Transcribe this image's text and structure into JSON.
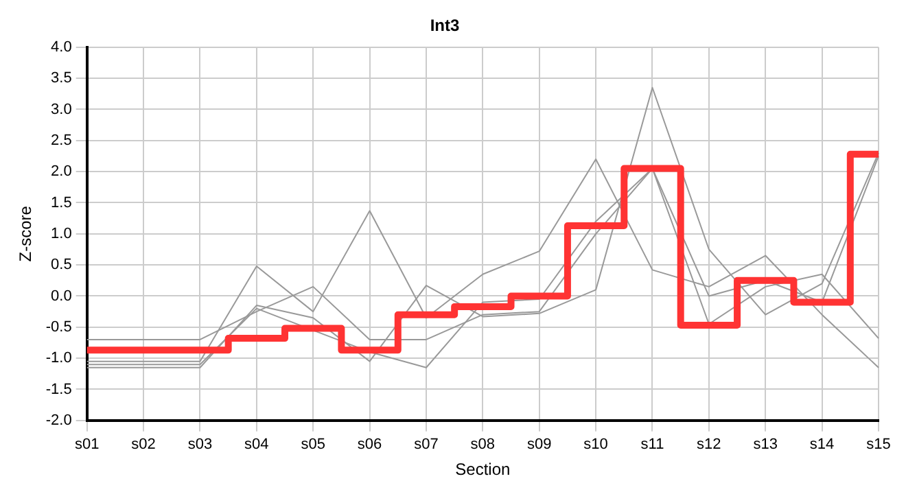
{
  "chart_data": {
    "type": "line",
    "title": "Int3",
    "xlabel": "Section",
    "ylabel": "Z-score",
    "categories": [
      "s01",
      "s02",
      "s03",
      "s04",
      "s05",
      "s06",
      "s07",
      "s08",
      "s09",
      "s10",
      "s11",
      "s12",
      "s13",
      "s14",
      "s15"
    ],
    "ylim": [
      -2,
      4
    ],
    "yticks": [
      {
        "value": -2,
        "label": "-2.0"
      },
      {
        "value": -1.5,
        "label": "-1.5"
      },
      {
        "value": -1,
        "label": "-1.0"
      },
      {
        "value": -0.5,
        "label": "-0.5"
      },
      {
        "value": 0,
        "label": "0.0"
      },
      {
        "value": 0.5,
        "label": "0.5"
      },
      {
        "value": 1,
        "label": "1.0"
      },
      {
        "value": 1.5,
        "label": "1.5"
      },
      {
        "value": 2,
        "label": "2.0"
      },
      {
        "value": 2.5,
        "label": "2.5"
      },
      {
        "value": 3,
        "label": "3.0"
      },
      {
        "value": 3.5,
        "label": "3.5"
      },
      {
        "value": 4,
        "label": "4.0"
      }
    ],
    "grid": true,
    "legend": false,
    "marker": "none",
    "series": [
      {
        "type": "line",
        "color": "#999999",
        "values": [
          -0.7,
          -0.7,
          -0.7,
          -0.25,
          0.15,
          -0.7,
          -0.7,
          -0.3,
          -0.25,
          1.0,
          2.05,
          -0.45,
          0.15,
          0.35,
          -0.68
        ]
      },
      {
        "type": "line",
        "color": "#999999",
        "values": [
          -1.05,
          -1.05,
          -1.05,
          0.48,
          -0.25,
          1.37,
          -0.35,
          0.35,
          0.72,
          2.2,
          0.42,
          0.15,
          0.65,
          -0.3,
          -1.15
        ]
      },
      {
        "type": "line",
        "color": "#999999",
        "values": [
          -1.15,
          -1.15,
          -1.15,
          -0.15,
          -0.35,
          -1.05,
          0.17,
          -0.33,
          -0.28,
          0.1,
          3.35,
          0.75,
          -0.3,
          0.2,
          2.3
        ]
      },
      {
        "type": "line",
        "color": "#999999",
        "values": [
          -1.1,
          -1.1,
          -1.1,
          -0.2,
          -0.55,
          -0.9,
          -1.15,
          -0.1,
          -0.05,
          1.2,
          2.05,
          0.0,
          0.25,
          -0.1,
          2.25
        ]
      },
      {
        "type": "step",
        "color": "#ff3333",
        "values": [
          -0.87,
          -0.87,
          -0.87,
          -0.68,
          -0.52,
          -0.87,
          -0.3,
          -0.17,
          0.0,
          1.13,
          2.05,
          -0.47,
          0.25,
          -0.1,
          2.28
        ]
      }
    ]
  }
}
